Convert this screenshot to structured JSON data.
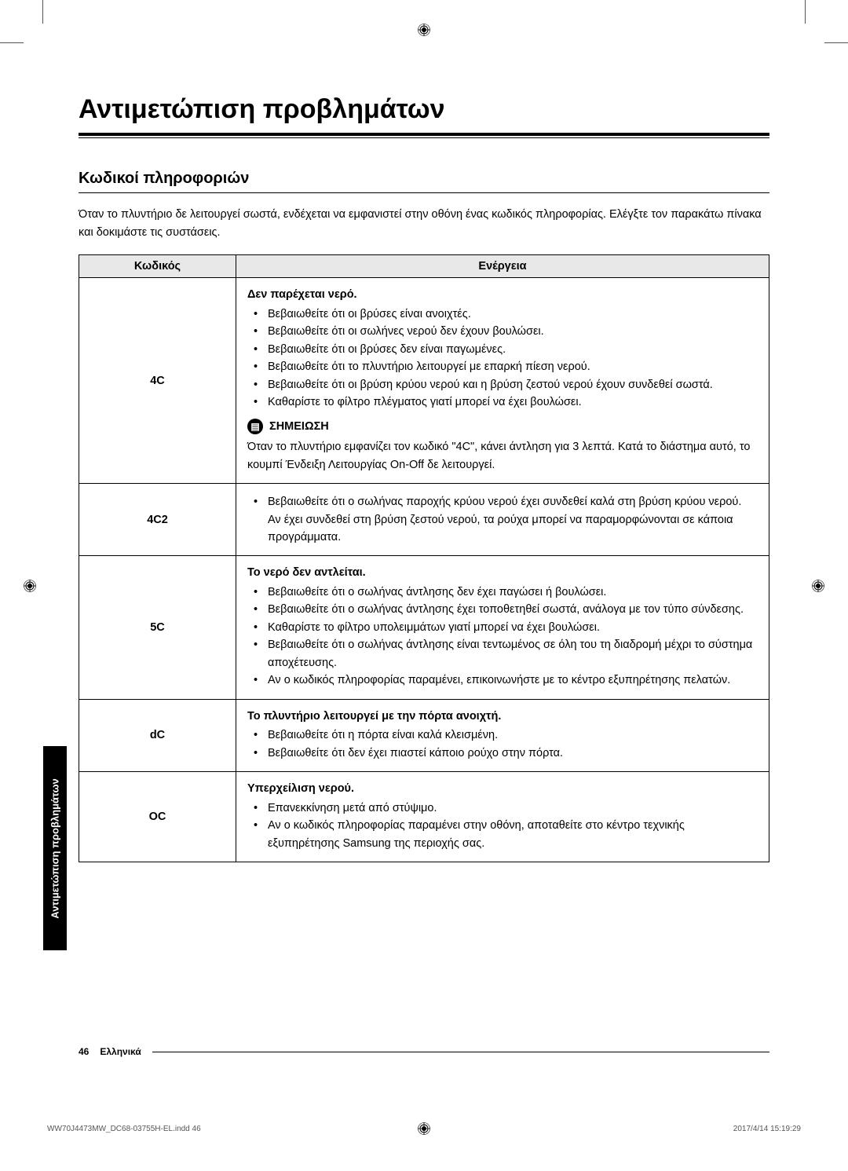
{
  "title": "Αντιμετώπιση προβλημάτων",
  "section_title": "Κωδικοί πληροφοριών",
  "intro": "Όταν το πλυντήριο δε λειτουργεί σωστά, ενδέχεται να εμφανιστεί στην οθόνη ένας κωδικός πληροφορίας. Ελέγξτε τον παρακάτω πίνακα και δοκιμάστε τις συστάσεις.",
  "table": {
    "header_code": "Κωδικός",
    "header_action": "Ενέργεια",
    "rows": [
      {
        "code": "4C",
        "heading": "Δεν παρέχεται νερό.",
        "items": [
          "Βεβαιωθείτε ότι οι βρύσες είναι ανοιχτές.",
          "Βεβαιωθείτε ότι οι σωλήνες νερού δεν έχουν βουλώσει.",
          "Βεβαιωθείτε ότι οι βρύσες δεν είναι παγωμένες.",
          "Βεβαιωθείτε ότι το πλυντήριο λειτουργεί με επαρκή πίεση νερού.",
          "Βεβαιωθείτε ότι οι βρύση κρύου νερού και η βρύση ζεστού νερού έχουν συνδεθεί σωστά.",
          "Καθαρίστε το φίλτρο πλέγματος γιατί μπορεί να έχει βουλώσει."
        ],
        "note_label": "ΣΗΜΕΙΩΣΗ",
        "note_text": "Όταν το πλυντήριο εμφανίζει τον κωδικό \"4C\", κάνει άντληση για 3 λεπτά. Κατά το διάστημα αυτό, το κουμπί Ένδειξη Λειτουργίας On-Off δε λειτουργεί."
      },
      {
        "code": "4C2",
        "heading": "",
        "items": [
          "Βεβαιωθείτε ότι ο σωλήνας παροχής κρύου νερού έχει συνδεθεί καλά στη βρύση κρύου νερού.\nΑν έχει συνδεθεί στη βρύση ζεστού νερού, τα ρούχα μπορεί να παραμορφώνονται σε κάποια προγράμματα."
        ]
      },
      {
        "code": "5C",
        "heading": "Το νερό δεν αντλείται.",
        "items": [
          "Βεβαιωθείτε ότι ο σωλήνας άντλησης δεν έχει παγώσει ή βουλώσει.",
          "Βεβαιωθείτε ότι ο σωλήνας άντλησης έχει τοποθετηθεί σωστά, ανάλογα με τον τύπο σύνδεσης.",
          "Καθαρίστε το φίλτρο υπολειμμάτων γιατί μπορεί να έχει βουλώσει.",
          "Βεβαιωθείτε ότι ο σωλήνας άντλησης είναι τεντωμένος σε όλη του τη διαδρομή μέχρι το σύστημα αποχέτευσης.",
          "Αν ο κωδικός πληροφορίας παραμένει, επικοινωνήστε με το κέντρο εξυπηρέτησης πελατών."
        ]
      },
      {
        "code": "dC",
        "heading": "Το πλυντήριο λειτουργεί με την πόρτα ανοιχτή.",
        "items": [
          "Βεβαιωθείτε ότι η πόρτα είναι καλά κλεισμένη.",
          "Βεβαιωθείτε ότι δεν έχει πιαστεί κάποιο ρούχο στην πόρτα."
        ]
      },
      {
        "code": "OC",
        "heading": "Υπερχείλιση νερού.",
        "items": [
          "Επανεκκίνηση μετά από στύψιμο.",
          "Αν ο κωδικός πληροφορίας παραμένει στην οθόνη, αποταθείτε στο κέντρο τεχνικής εξυπηρέτησης Samsung της περιοχής σας."
        ]
      }
    ]
  },
  "side_tab": "Αντιμετώπιση προβλημάτων",
  "footer": {
    "page": "46",
    "lang": "Ελληνικά"
  },
  "imprint": {
    "left": "WW70J4473MW_DC68-03755H-EL.indd   46",
    "right": "2017/4/14   15:19:29"
  }
}
